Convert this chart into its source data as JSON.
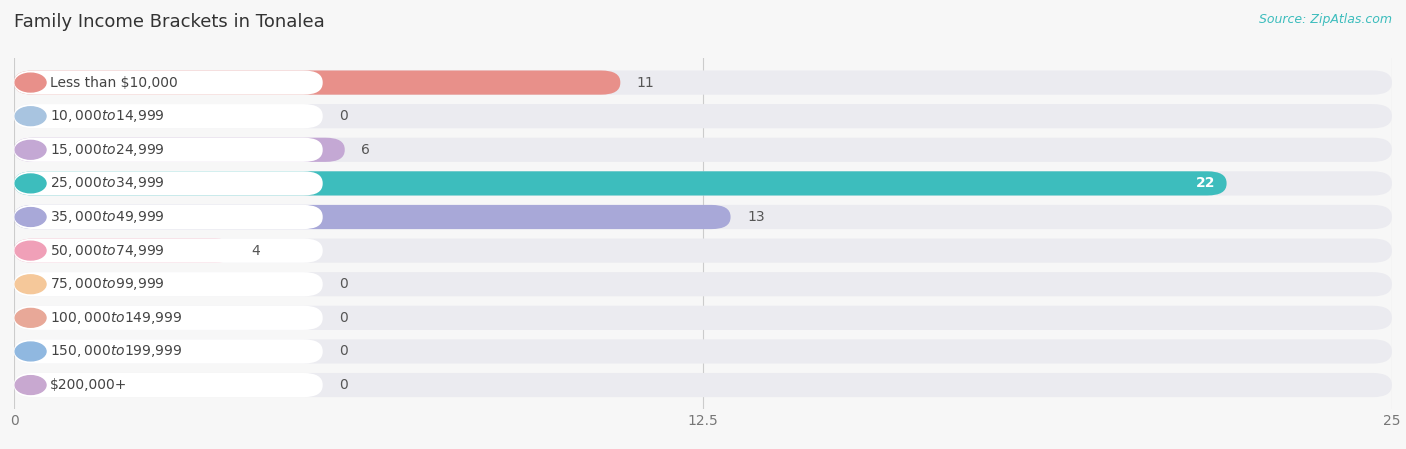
{
  "title": "Family Income Brackets in Tonalea",
  "source": "Source: ZipAtlas.com",
  "categories": [
    "Less than $10,000",
    "$10,000 to $14,999",
    "$15,000 to $24,999",
    "$25,000 to $34,999",
    "$35,000 to $49,999",
    "$50,000 to $74,999",
    "$75,000 to $99,999",
    "$100,000 to $149,999",
    "$150,000 to $199,999",
    "$200,000+"
  ],
  "values": [
    11,
    0,
    6,
    22,
    13,
    4,
    0,
    0,
    0,
    0
  ],
  "bar_colors": [
    "#e8908a",
    "#a8c4e0",
    "#c4a8d4",
    "#3dbdbd",
    "#a8a8d8",
    "#f0a0b8",
    "#f5c89a",
    "#e8a898",
    "#90b8e0",
    "#c8a8d0"
  ],
  "xlim": [
    0,
    25
  ],
  "xticks": [
    0,
    12.5,
    25
  ],
  "background_color": "#f7f7f7",
  "bar_bg_color": "#e4e4ec",
  "row_bg_color": "#ebebf0",
  "title_fontsize": 13,
  "label_fontsize": 10,
  "value_fontsize": 10,
  "source_fontsize": 9,
  "pill_bg_color": "#ffffff"
}
